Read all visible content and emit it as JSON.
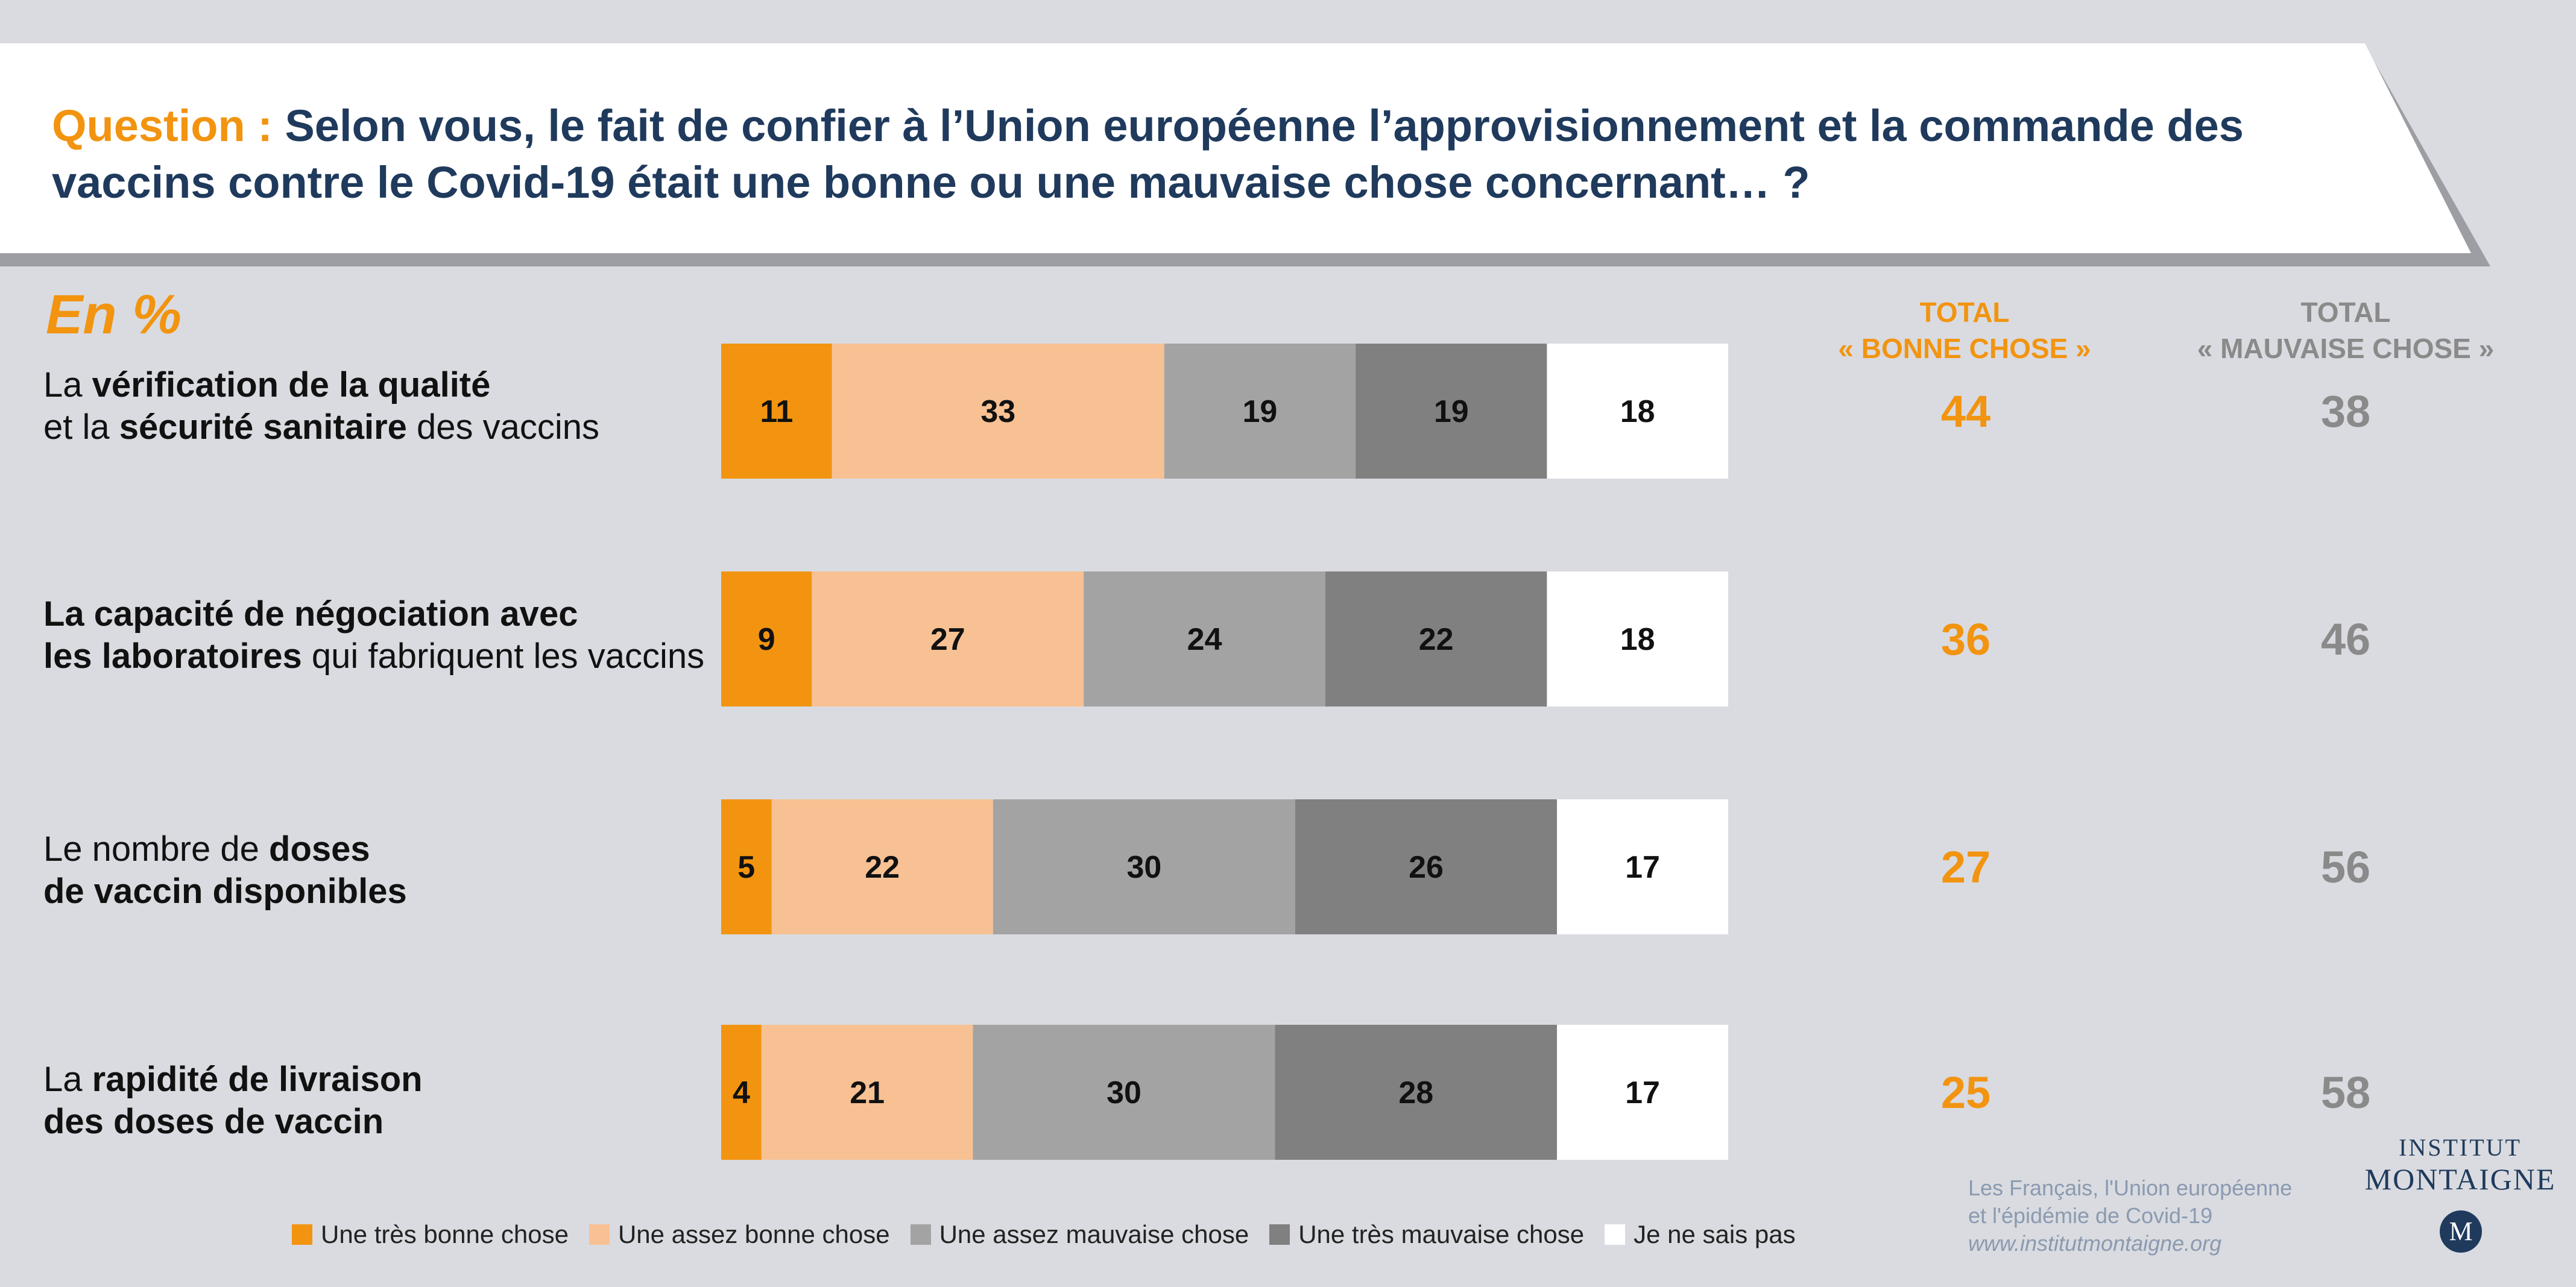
{
  "question_prefix": "Question : ",
  "question_text": "Selon vous, le fait de confier à l’Union européenne l’approvisionnement et la commande des vaccins contre le Covid-19 était une bonne ou une mauvaise chose concernant… ?",
  "unit_label": "En %",
  "headers": {
    "good": [
      "TOTAL",
      "« BONNE CHOSE »"
    ],
    "bad": [
      "TOTAL",
      "« MAUVAISE CHOSE »"
    ]
  },
  "row_labels": [
    [
      [
        {
          "t": "La ",
          "b": false
        },
        {
          "t": "vérification de la qualité",
          "b": true
        }
      ],
      [
        {
          "t": "et la ",
          "b": false
        },
        {
          "t": "sécurité sanitaire",
          "b": true
        },
        {
          "t": " des vaccins",
          "b": false
        }
      ]
    ],
    [
      [
        {
          "t": "La capacité de négociation avec",
          "b": true
        }
      ],
      [
        {
          "t": "les laboratoires",
          "b": true
        },
        {
          "t": " qui fabriquent les vaccins",
          "b": false
        }
      ]
    ],
    [
      [
        {
          "t": "Le nombre de ",
          "b": false
        },
        {
          "t": "doses",
          "b": true
        }
      ],
      [
        {
          "t": "de vaccin disponibles",
          "b": true
        }
      ]
    ],
    [
      [
        {
          "t": "La ",
          "b": false
        },
        {
          "t": "rapidité de livraison",
          "b": true
        }
      ],
      [
        {
          "t": "des doses de vaccin",
          "b": true
        }
      ]
    ]
  ],
  "chart_data": {
    "type": "bar",
    "orientation": "horizontal",
    "stacked": true,
    "categories": [
      "La vérification de la qualité et la sécurité sanitaire des vaccins",
      "La capacité de négociation avec les laboratoires qui fabriquent les vaccins",
      "Le nombre de doses de vaccin disponibles",
      "La rapidité de livraison des doses de vaccin"
    ],
    "series": [
      {
        "name": "Une très bonne chose",
        "color": "#f29410",
        "values": [
          11,
          9,
          5,
          4
        ]
      },
      {
        "name": "Une assez bonne chose",
        "color": "#f7c194",
        "values": [
          33,
          27,
          22,
          21
        ]
      },
      {
        "name": "Une assez mauvaise chose",
        "color": "#a3a3a3",
        "values": [
          19,
          24,
          30,
          30
        ]
      },
      {
        "name": "Une très mauvaise chose",
        "color": "#808080",
        "values": [
          19,
          22,
          26,
          28
        ]
      },
      {
        "name": "Je ne sais pas",
        "color": "#ffffff",
        "values": [
          18,
          18,
          17,
          17
        ]
      }
    ],
    "total_good": [
      44,
      36,
      27,
      25
    ],
    "total_bad": [
      38,
      46,
      56,
      58
    ],
    "total_good_color": "#f29410",
    "total_bad_color": "#8a8a8a",
    "legend_position": "bottom"
  },
  "source": {
    "line1": "Les Français, l'Union européenne",
    "line2": "et l'épidémie de Covid-19",
    "url": "www.institutmontaigne.org"
  },
  "logo": {
    "line1": "INSTITUT",
    "line2": "MONTAIGNE",
    "mark": "M"
  }
}
